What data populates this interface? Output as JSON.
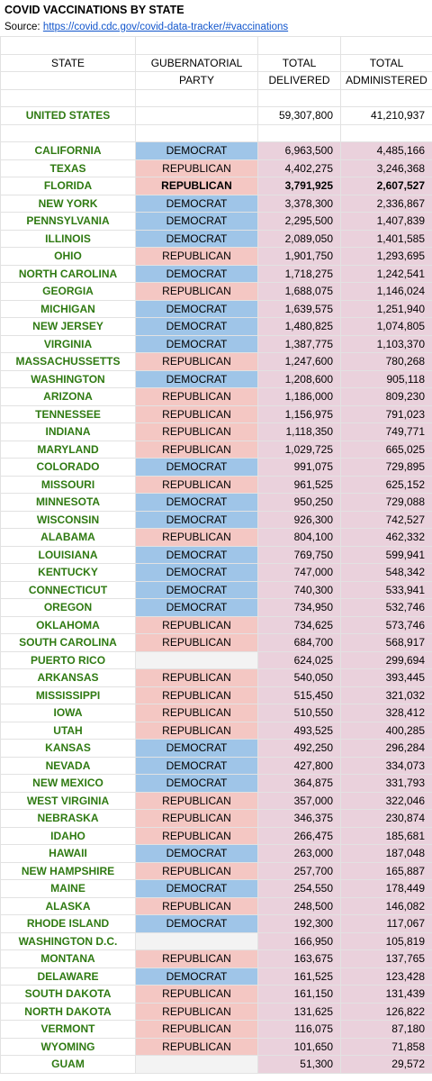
{
  "header": {
    "title": "COVID VACCINATIONS BY STATE",
    "source_label": "Source:",
    "source_link": "https://covid.cdc.gov/covid-data-tracker/#vaccinations"
  },
  "columns": {
    "state": "STATE",
    "party_line1": "GUBERNATORIAL",
    "party_line2": "PARTY",
    "delivered_line1": "TOTAL",
    "delivered_line2": "DELIVERED",
    "administered_line1": "TOTAL",
    "administered_line2": "ADMINISTERED"
  },
  "total": {
    "name": "UNITED STATES",
    "delivered": "59,307,800",
    "administered": "41,210,937"
  },
  "colors": {
    "democrat": "#9fc5e8",
    "republican": "#f4c7c3",
    "none": "#f3f3f3",
    "number_bg": "#ead1dc",
    "state_text": "#2f7a12"
  },
  "rows": [
    {
      "state": "CALIFORNIA",
      "party": "DEMOCRAT",
      "delivered": "6,963,500",
      "administered": "4,485,166"
    },
    {
      "state": "TEXAS",
      "party": "REPUBLICAN",
      "delivered": "4,402,275",
      "administered": "3,246,368"
    },
    {
      "state": "FLORIDA",
      "party": "REPUBLICAN",
      "delivered": "3,791,925",
      "administered": "2,607,527",
      "bold": true
    },
    {
      "state": "NEW YORK",
      "party": "DEMOCRAT",
      "delivered": "3,378,300",
      "administered": "2,336,867"
    },
    {
      "state": "PENNSYLVANIA",
      "party": "DEMOCRAT",
      "delivered": "2,295,500",
      "administered": "1,407,839"
    },
    {
      "state": "ILLINOIS",
      "party": "DEMOCRAT",
      "delivered": "2,089,050",
      "administered": "1,401,585"
    },
    {
      "state": "OHIO",
      "party": "REPUBLICAN",
      "delivered": "1,901,750",
      "administered": "1,293,695"
    },
    {
      "state": "NORTH CAROLINA",
      "party": "DEMOCRAT",
      "delivered": "1,718,275",
      "administered": "1,242,541"
    },
    {
      "state": "GEORGIA",
      "party": "REPUBLICAN",
      "delivered": "1,688,075",
      "administered": "1,146,024"
    },
    {
      "state": "MICHIGAN",
      "party": "DEMOCRAT",
      "delivered": "1,639,575",
      "administered": "1,251,940"
    },
    {
      "state": "NEW JERSEY",
      "party": "DEMOCRAT",
      "delivered": "1,480,825",
      "administered": "1,074,805"
    },
    {
      "state": "VIRGINIA",
      "party": "DEMOCRAT",
      "delivered": "1,387,775",
      "administered": "1,103,370"
    },
    {
      "state": "MASSACHUSSETTS",
      "party": "REPUBLICAN",
      "delivered": "1,247,600",
      "administered": "780,268"
    },
    {
      "state": "WASHINGTON",
      "party": "DEMOCRAT",
      "delivered": "1,208,600",
      "administered": "905,118"
    },
    {
      "state": "ARIZONA",
      "party": "REPUBLICAN",
      "delivered": "1,186,000",
      "administered": "809,230"
    },
    {
      "state": "TENNESSEE",
      "party": "REPUBLICAN",
      "delivered": "1,156,975",
      "administered": "791,023"
    },
    {
      "state": "INDIANA",
      "party": "REPUBLICAN",
      "delivered": "1,118,350",
      "administered": "749,771"
    },
    {
      "state": "MARYLAND",
      "party": "REPUBLICAN",
      "delivered": "1,029,725",
      "administered": "665,025"
    },
    {
      "state": "COLORADO",
      "party": "DEMOCRAT",
      "delivered": "991,075",
      "administered": "729,895"
    },
    {
      "state": "MISSOURI",
      "party": "REPUBLICAN",
      "delivered": "961,525",
      "administered": "625,152"
    },
    {
      "state": "MINNESOTA",
      "party": "DEMOCRAT",
      "delivered": "950,250",
      "administered": "729,088"
    },
    {
      "state": "WISCONSIN",
      "party": "DEMOCRAT",
      "delivered": "926,300",
      "administered": "742,527"
    },
    {
      "state": "ALABAMA",
      "party": "REPUBLICAN",
      "delivered": "804,100",
      "administered": "462,332"
    },
    {
      "state": "LOUISIANA",
      "party": "DEMOCRAT",
      "delivered": "769,750",
      "administered": "599,941"
    },
    {
      "state": "KENTUCKY",
      "party": "DEMOCRAT",
      "delivered": "747,000",
      "administered": "548,342"
    },
    {
      "state": "CONNECTICUT",
      "party": "DEMOCRAT",
      "delivered": "740,300",
      "administered": "533,941"
    },
    {
      "state": "OREGON",
      "party": "DEMOCRAT",
      "delivered": "734,950",
      "administered": "532,746"
    },
    {
      "state": "OKLAHOMA",
      "party": "REPUBLICAN",
      "delivered": "734,625",
      "administered": "573,746"
    },
    {
      "state": "SOUTH CAROLINA",
      "party": "REPUBLICAN",
      "delivered": "684,700",
      "administered": "568,917"
    },
    {
      "state": "PUERTO RICO",
      "party": "",
      "delivered": "624,025",
      "administered": "299,694"
    },
    {
      "state": "ARKANSAS",
      "party": "REPUBLICAN",
      "delivered": "540,050",
      "administered": "393,445"
    },
    {
      "state": "MISSISSIPPI",
      "party": "REPUBLICAN",
      "delivered": "515,450",
      "administered": "321,032"
    },
    {
      "state": "IOWA",
      "party": "REPUBLICAN",
      "delivered": "510,550",
      "administered": "328,412"
    },
    {
      "state": "UTAH",
      "party": "REPUBLICAN",
      "delivered": "493,525",
      "administered": "400,285"
    },
    {
      "state": "KANSAS",
      "party": "DEMOCRAT",
      "delivered": "492,250",
      "administered": "296,284"
    },
    {
      "state": "NEVADA",
      "party": "DEMOCRAT",
      "delivered": "427,800",
      "administered": "334,073"
    },
    {
      "state": "NEW MEXICO",
      "party": "DEMOCRAT",
      "delivered": "364,875",
      "administered": "331,793"
    },
    {
      "state": "WEST VIRGINIA",
      "party": "REPUBLICAN",
      "delivered": "357,000",
      "administered": "322,046"
    },
    {
      "state": "NEBRASKA",
      "party": "REPUBLICAN",
      "delivered": "346,375",
      "administered": "230,874"
    },
    {
      "state": "IDAHO",
      "party": "REPUBLICAN",
      "delivered": "266,475",
      "administered": "185,681"
    },
    {
      "state": "HAWAII",
      "party": "DEMOCRAT",
      "delivered": "263,000",
      "administered": "187,048"
    },
    {
      "state": "NEW HAMPSHIRE",
      "party": "REPUBLICAN",
      "delivered": "257,700",
      "administered": "165,887"
    },
    {
      "state": "MAINE",
      "party": "DEMOCRAT",
      "delivered": "254,550",
      "administered": "178,449"
    },
    {
      "state": "ALASKA",
      "party": "REPUBLICAN",
      "delivered": "248,500",
      "administered": "146,082"
    },
    {
      "state": "RHODE ISLAND",
      "party": "DEMOCRAT",
      "delivered": "192,300",
      "administered": "117,067"
    },
    {
      "state": "WASHINGTON D.C.",
      "party": "",
      "delivered": "166,950",
      "administered": "105,819"
    },
    {
      "state": "MONTANA",
      "party": "REPUBLICAN",
      "delivered": "163,675",
      "administered": "137,765"
    },
    {
      "state": "DELAWARE",
      "party": "DEMOCRAT",
      "delivered": "161,525",
      "administered": "123,428"
    },
    {
      "state": "SOUTH DAKOTA",
      "party": "REPUBLICAN",
      "delivered": "161,150",
      "administered": "131,439"
    },
    {
      "state": "NORTH DAKOTA",
      "party": "REPUBLICAN",
      "delivered": "131,625",
      "administered": "126,822"
    },
    {
      "state": "VERMONT",
      "party": "REPUBLICAN",
      "delivered": "116,075",
      "administered": "87,180"
    },
    {
      "state": "WYOMING",
      "party": "REPUBLICAN",
      "delivered": "101,650",
      "administered": "71,858"
    },
    {
      "state": "GUAM",
      "party": "",
      "delivered": "51,300",
      "administered": "29,572"
    }
  ]
}
